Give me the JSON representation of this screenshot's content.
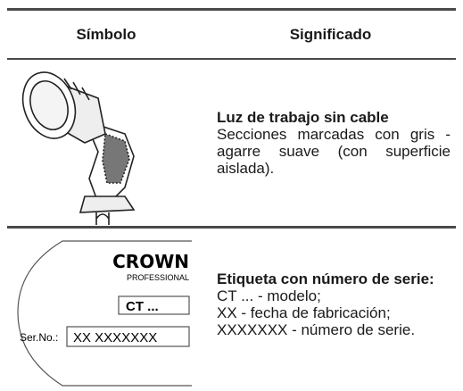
{
  "header": {
    "symbol": "Símbolo",
    "meaning": "Significado"
  },
  "rows": [
    {
      "title": "Luz de trabajo sin cable",
      "description": "Secciones marcadas con gris - agarre suave (con superficie aislada)."
    },
    {
      "title": "Etiqueta con número de serie:",
      "lines": [
        "CT ... - modelo;",
        "XX - fecha de fabricación;",
        "XXXXXXX - número de serie."
      ],
      "label": {
        "brand": "CROWN",
        "sub": "PROFESSIONAL",
        "model": "CT ...",
        "serial_caption": "Ser.No.:",
        "serial": "XX XXXXXXX"
      }
    }
  ]
}
